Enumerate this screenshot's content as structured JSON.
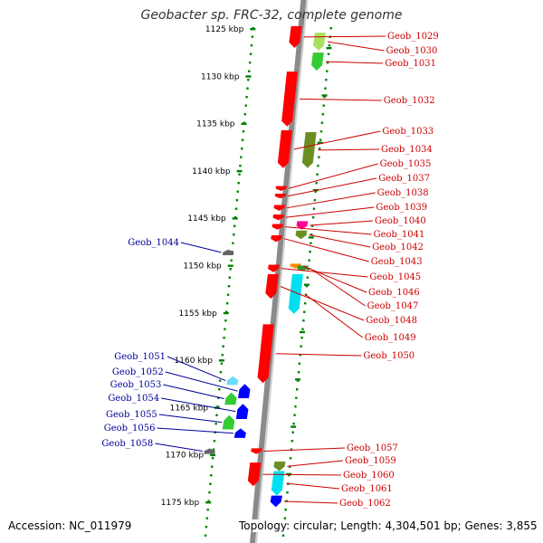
{
  "title": "Geobacter sp. FRC-32, complete genome",
  "footer": {
    "accession": "Accession: NC_011979",
    "summary": "Topology: circular; Length: 4,304,501 bp; Genes: 3,855"
  },
  "colors": {
    "reverse_label": "#cc0000",
    "forward_label": "#000099",
    "backbone": "#8a8a8a",
    "tick": "#008000"
  },
  "ticks": [
    {
      "label": "1125 kbp",
      "kb": 1125
    },
    {
      "label": "1130 kbp",
      "kb": 1130
    },
    {
      "label": "1135 kbp",
      "kb": 1135
    },
    {
      "label": "1140 kbp",
      "kb": 1140
    },
    {
      "label": "1145 kbp",
      "kb": 1145
    },
    {
      "label": "1150 kbp",
      "kb": 1150
    },
    {
      "label": "1155 kbp",
      "kb": 1155
    },
    {
      "label": "1160 kbp",
      "kb": 1160
    },
    {
      "label": "1165 kbp",
      "kb": 1165
    },
    {
      "label": "1170 kbp",
      "kb": 1170
    },
    {
      "label": "1175 kbp",
      "kb": 1175
    }
  ],
  "genes_reverse": [
    {
      "label": "Geob_1029",
      "kb": 1124.7,
      "len": 2.3,
      "color": "#ff0000"
    },
    {
      "label": "Geob_1030",
      "kb": 1125.4,
      "len": 1.9,
      "color": "#a8e060"
    },
    {
      "label": "Geob_1031",
      "kb": 1127.5,
      "len": 1.9,
      "color": "#33cc33"
    },
    {
      "label": "Geob_1032",
      "kb": 1129.5,
      "len": 5.8,
      "color": "#ff0000"
    },
    {
      "label": "Geob_1033",
      "kb": 1135.7,
      "len": 4.0,
      "color": "#ff0000"
    },
    {
      "label": "Geob_1034",
      "kb": 1135.9,
      "len": 3.8,
      "color": "#6b8e23"
    },
    {
      "label": "Geob_1035",
      "kb": 1141.6,
      "len": 0.5,
      "color": "#ff0000"
    },
    {
      "label": "Geob_1037",
      "kb": 1142.4,
      "len": 0.5,
      "color": "#ff0000"
    },
    {
      "label": "Geob_1038",
      "kb": 1143.6,
      "len": 0.6,
      "color": "#ff0000"
    },
    {
      "label": "Geob_1039",
      "kb": 1144.6,
      "len": 0.6,
      "color": "#ff0000"
    },
    {
      "label": "Geob_1040",
      "kb": 1145.3,
      "len": 0.9,
      "color": "#ff0099"
    },
    {
      "label": "Geob_1041",
      "kb": 1145.6,
      "len": 0.6,
      "color": "#ff0000"
    },
    {
      "label": "Geob_1042",
      "kb": 1146.3,
      "len": 0.9,
      "color": "#6b8e23"
    },
    {
      "label": "Geob_1043",
      "kb": 1146.8,
      "len": 0.7,
      "color": "#ff0000"
    },
    {
      "label": "Geob_1045",
      "kb": 1149.9,
      "len": 0.8,
      "color": "#ff0000"
    },
    {
      "label": "Geob_1046",
      "kb": 1149.8,
      "len": 0.5,
      "color": "#ff8800"
    },
    {
      "label": "Geob_1047",
      "kb": 1150.0,
      "len": 0.6,
      "color": "#339933"
    },
    {
      "label": "Geob_1048",
      "kb": 1150.9,
      "len": 2.6,
      "color": "#ff0000"
    },
    {
      "label": "Geob_1049",
      "kb": 1150.9,
      "len": 4.2,
      "color": "#00e0f0"
    },
    {
      "label": "Geob_1050",
      "kb": 1156.2,
      "len": 6.2,
      "color": "#ff0000"
    },
    {
      "label": "Geob_1057",
      "kb": 1169.3,
      "len": 0.6,
      "color": "#ff0000"
    },
    {
      "label": "Geob_1059",
      "kb": 1170.7,
      "len": 1.0,
      "color": "#6b8e23"
    },
    {
      "label": "Geob_1060",
      "kb": 1170.8,
      "len": 2.5,
      "color": "#ff0000"
    },
    {
      "label": "Geob_1061",
      "kb": 1171.7,
      "len": 2.6,
      "color": "#00e0f0"
    },
    {
      "label": "Geob_1062",
      "kb": 1174.3,
      "len": 1.2,
      "color": "#0000ff"
    }
  ],
  "genes_forward": [
    {
      "label": "Geob_1044",
      "kb": 1148.3,
      "len": 0.6,
      "color": "#666666"
    },
    {
      "label": "Geob_1051",
      "kb": 1161.7,
      "len": 0.9,
      "color": "#66ddff"
    },
    {
      "label": "Geob_1052",
      "kb": 1162.5,
      "len": 1.5,
      "color": "#0000ff"
    },
    {
      "label": "Geob_1053",
      "kb": 1163.4,
      "len": 1.3,
      "color": "#33cc33"
    },
    {
      "label": "Geob_1054",
      "kb": 1164.6,
      "len": 1.6,
      "color": "#0000ff"
    },
    {
      "label": "Geob_1055",
      "kb": 1165.8,
      "len": 1.5,
      "color": "#33cc33"
    },
    {
      "label": "Geob_1056",
      "kb": 1167.2,
      "len": 1.0,
      "color": "#0000ff"
    },
    {
      "label": "Geob_1058",
      "kb": 1169.3,
      "len": 0.6,
      "color": "#666666"
    }
  ]
}
